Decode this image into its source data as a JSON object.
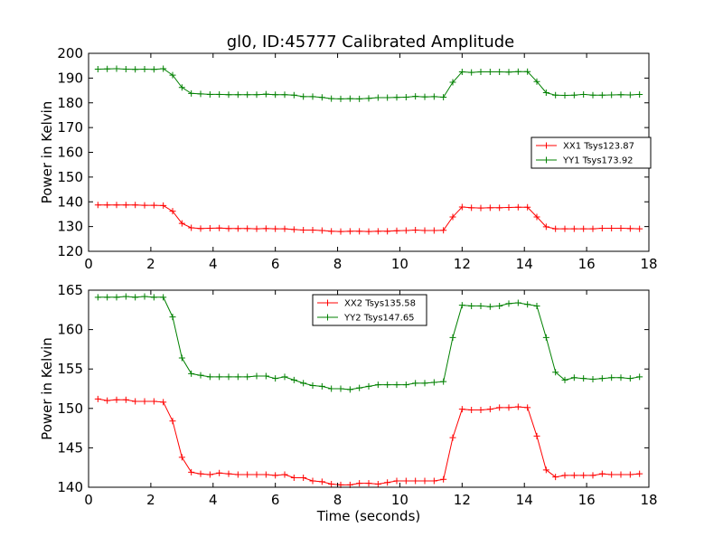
{
  "figure": {
    "title": "gl0, ID:45777 Calibrated Amplitude"
  },
  "chart_data": [
    {
      "type": "line",
      "title": "gl0, ID:45777 Calibrated Amplitude",
      "xlabel": "",
      "ylabel": "Power in Kelvin",
      "xlim": [
        0,
        18
      ],
      "ylim": [
        120,
        200
      ],
      "xticks": [
        0,
        2,
        4,
        6,
        8,
        10,
        12,
        14,
        16,
        18
      ],
      "yticks": [
        120,
        130,
        140,
        150,
        160,
        170,
        180,
        190,
        200
      ],
      "grid": false,
      "legend_position": "right",
      "x": [
        0.3,
        0.6,
        0.9,
        1.2,
        1.5,
        1.8,
        2.1,
        2.4,
        2.7,
        3.0,
        3.3,
        3.6,
        3.9,
        4.2,
        4.5,
        4.8,
        5.1,
        5.4,
        5.7,
        6.0,
        6.3,
        6.6,
        6.9,
        7.2,
        7.5,
        7.8,
        8.1,
        8.4,
        8.7,
        9.0,
        9.3,
        9.6,
        9.9,
        10.2,
        10.5,
        10.8,
        11.1,
        11.4,
        11.7,
        12.0,
        12.3,
        12.6,
        12.9,
        13.2,
        13.5,
        13.8,
        14.1,
        14.4,
        14.7,
        15.0,
        15.3,
        15.6,
        15.9,
        16.2,
        16.5,
        16.8,
        17.1,
        17.4,
        17.7
      ],
      "series": [
        {
          "name": "XX1 Tsys123.87",
          "color": "#ff0000",
          "values": [
            138.7,
            138.7,
            138.7,
            138.7,
            138.7,
            138.6,
            138.6,
            138.5,
            136.2,
            131.3,
            129.5,
            129.2,
            129.3,
            129.4,
            129.2,
            129.2,
            129.2,
            129.1,
            129.2,
            129.1,
            129.1,
            128.8,
            128.6,
            128.6,
            128.4,
            128.1,
            128.0,
            128.1,
            128.1,
            128.0,
            128.1,
            128.1,
            128.3,
            128.4,
            128.6,
            128.4,
            128.4,
            128.5,
            133.9,
            137.9,
            137.6,
            137.5,
            137.6,
            137.6,
            137.7,
            137.8,
            137.8,
            133.9,
            129.9,
            129.1,
            129.1,
            129.1,
            129.1,
            129.1,
            129.3,
            129.3,
            129.3,
            129.2,
            129.1
          ]
        },
        {
          "name": "YY1 Tsys173.92",
          "color": "#008000",
          "values": [
            193.6,
            193.7,
            193.8,
            193.6,
            193.5,
            193.6,
            193.5,
            193.8,
            191.2,
            186.2,
            183.8,
            183.6,
            183.4,
            183.4,
            183.3,
            183.3,
            183.3,
            183.3,
            183.5,
            183.3,
            183.3,
            183.1,
            182.5,
            182.5,
            182.2,
            181.7,
            181.6,
            181.7,
            181.6,
            181.8,
            182.1,
            182.1,
            182.2,
            182.3,
            182.6,
            182.4,
            182.5,
            182.3,
            188.3,
            192.5,
            192.3,
            192.5,
            192.5,
            192.5,
            192.4,
            192.6,
            192.6,
            188.6,
            184.1,
            183.1,
            183.0,
            183.1,
            183.4,
            183.1,
            183.1,
            183.2,
            183.3,
            183.2,
            183.4
          ]
        }
      ]
    },
    {
      "type": "line",
      "title": "",
      "xlabel": "Time (seconds)",
      "ylabel": "Power in Kelvin",
      "xlim": [
        0,
        18
      ],
      "ylim": [
        140,
        165
      ],
      "xticks": [
        0,
        2,
        4,
        6,
        8,
        10,
        12,
        14,
        16,
        18
      ],
      "yticks": [
        140,
        145,
        150,
        155,
        160,
        165
      ],
      "grid": false,
      "legend_position": "top-center",
      "x": [
        0.3,
        0.6,
        0.9,
        1.2,
        1.5,
        1.8,
        2.1,
        2.4,
        2.7,
        3.0,
        3.3,
        3.6,
        3.9,
        4.2,
        4.5,
        4.8,
        5.1,
        5.4,
        5.7,
        6.0,
        6.3,
        6.6,
        6.9,
        7.2,
        7.5,
        7.8,
        8.1,
        8.4,
        8.7,
        9.0,
        9.3,
        9.6,
        9.9,
        10.2,
        10.5,
        10.8,
        11.1,
        11.4,
        11.7,
        12.0,
        12.3,
        12.6,
        12.9,
        13.2,
        13.5,
        13.8,
        14.1,
        14.4,
        14.7,
        15.0,
        15.3,
        15.6,
        15.9,
        16.2,
        16.5,
        16.8,
        17.1,
        17.4,
        17.7
      ],
      "series": [
        {
          "name": "XX2 Tsys135.58",
          "color": "#ff0000",
          "values": [
            151.2,
            151.0,
            151.1,
            151.1,
            150.9,
            150.9,
            150.9,
            150.8,
            148.4,
            143.8,
            141.9,
            141.7,
            141.6,
            141.8,
            141.7,
            141.6,
            141.6,
            141.6,
            141.6,
            141.5,
            141.6,
            141.2,
            141.2,
            140.8,
            140.7,
            140.4,
            140.3,
            140.3,
            140.5,
            140.5,
            140.4,
            140.6,
            140.8,
            140.8,
            140.8,
            140.8,
            140.8,
            141.0,
            146.3,
            149.9,
            149.8,
            149.8,
            149.9,
            150.1,
            150.1,
            150.2,
            150.1,
            146.5,
            142.2,
            141.3,
            141.5,
            141.5,
            141.5,
            141.5,
            141.7,
            141.6,
            141.6,
            141.6,
            141.7
          ]
        },
        {
          "name": "YY2 Tsys147.65",
          "color": "#008000",
          "values": [
            164.1,
            164.1,
            164.1,
            164.2,
            164.1,
            164.2,
            164.1,
            164.1,
            161.6,
            156.4,
            154.4,
            154.2,
            154.0,
            154.0,
            154.0,
            154.0,
            154.0,
            154.1,
            154.1,
            153.8,
            154.0,
            153.6,
            153.2,
            152.9,
            152.8,
            152.5,
            152.5,
            152.4,
            152.6,
            152.8,
            153.0,
            153.0,
            153.0,
            153.0,
            153.2,
            153.2,
            153.3,
            153.4,
            159.0,
            163.1,
            163.0,
            163.0,
            162.9,
            163.0,
            163.3,
            163.4,
            163.2,
            163.0,
            159.0,
            154.6,
            153.6,
            153.9,
            153.8,
            153.7,
            153.8,
            153.9,
            153.9,
            153.8,
            154.0
          ]
        }
      ]
    }
  ]
}
